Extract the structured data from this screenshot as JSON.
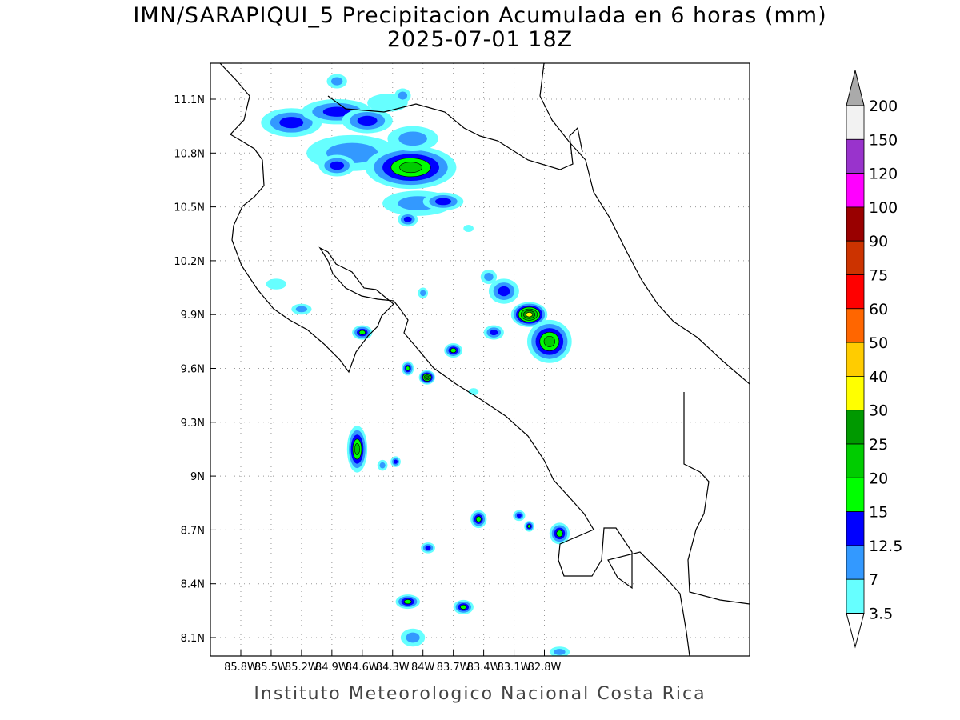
{
  "title": "IMN/SARAPIQUI_5 Precipitacion Acumulada en 6 horas (mm)",
  "subtitle": "2025-07-01 18Z",
  "footer": "Instituto Meteorologico Nacional Costa Rica",
  "map": {
    "lon_range": [
      -86.1,
      -82.55
    ],
    "lat_range": [
      8.0,
      11.3
    ],
    "lon_ticks": [
      {
        "v": -85.8,
        "label": "85.8W"
      },
      {
        "v": -85.5,
        "label": "85.5W"
      },
      {
        "v": -85.2,
        "label": "85.2W"
      },
      {
        "v": -84.9,
        "label": "84.9W"
      },
      {
        "v": -84.6,
        "label": "84.6W"
      },
      {
        "v": -84.3,
        "label": "84.3W"
      },
      {
        "v": -84.0,
        "label": "84W"
      },
      {
        "v": -83.7,
        "label": "83.7W"
      },
      {
        "v": -83.4,
        "label": "83.4W"
      },
      {
        "v": -83.1,
        "label": "83.1W"
      },
      {
        "v": -82.8,
        "label": "82.8W"
      }
    ],
    "lat_ticks": [
      {
        "v": 11.1,
        "label": "11.1N"
      },
      {
        "v": 10.8,
        "label": "10.8N"
      },
      {
        "v": 10.5,
        "label": "10.5N"
      },
      {
        "v": 10.2,
        "label": "10.2N"
      },
      {
        "v": 9.9,
        "label": "9.9N"
      },
      {
        "v": 9.6,
        "label": "9.6N"
      },
      {
        "v": 9.3,
        "label": "9.3N"
      },
      {
        "v": 9.0,
        "label": "9N"
      },
      {
        "v": 8.7,
        "label": "8.7N"
      },
      {
        "v": 8.4,
        "label": "8.4N"
      },
      {
        "v": 8.1,
        "label": "8.1N"
      }
    ],
    "rain_cells": [
      {
        "lon": -85.3,
        "lat": 10.97,
        "rlon": 0.3,
        "rlat": 0.08,
        "level": 2
      },
      {
        "lon": -84.85,
        "lat": 11.03,
        "rlon": 0.35,
        "rlat": 0.07,
        "level": 2
      },
      {
        "lon": -84.55,
        "lat": 10.98,
        "rlon": 0.25,
        "rlat": 0.07,
        "level": 2
      },
      {
        "lon": -84.7,
        "lat": 10.8,
        "rlon": 0.45,
        "rlat": 0.1,
        "level": 1
      },
      {
        "lon": -84.85,
        "lat": 10.73,
        "rlon": 0.18,
        "rlat": 0.06,
        "level": 2
      },
      {
        "lon": -84.12,
        "lat": 10.72,
        "rlon": 0.45,
        "rlat": 0.12,
        "level": 4
      },
      {
        "lon": -84.05,
        "lat": 10.52,
        "rlon": 0.35,
        "rlat": 0.07,
        "level": 1
      },
      {
        "lon": -84.15,
        "lat": 10.43,
        "rlon": 0.1,
        "rlat": 0.04,
        "level": 2
      },
      {
        "lon": -83.8,
        "lat": 10.53,
        "rlon": 0.2,
        "rlat": 0.05,
        "level": 2
      },
      {
        "lon": -84.35,
        "lat": 11.08,
        "rlon": 0.2,
        "rlat": 0.05,
        "level": 0
      },
      {
        "lon": -84.1,
        "lat": 10.88,
        "rlon": 0.25,
        "rlat": 0.07,
        "level": 1
      },
      {
        "lon": -84.2,
        "lat": 11.12,
        "rlon": 0.08,
        "rlat": 0.04,
        "level": 1
      },
      {
        "lon": -84.85,
        "lat": 11.2,
        "rlon": 0.1,
        "rlat": 0.04,
        "level": 1
      },
      {
        "lon": -83.2,
        "lat": 10.03,
        "rlon": 0.15,
        "rlat": 0.07,
        "level": 2
      },
      {
        "lon": -82.95,
        "lat": 9.9,
        "rlon": 0.18,
        "rlat": 0.07,
        "level": 6
      },
      {
        "lon": -83.3,
        "lat": 9.8,
        "rlon": 0.1,
        "rlat": 0.04,
        "level": 2
      },
      {
        "lon": -82.75,
        "lat": 9.75,
        "rlon": 0.22,
        "rlat": 0.12,
        "level": 4
      },
      {
        "lon": -83.35,
        "lat": 10.11,
        "rlon": 0.08,
        "rlat": 0.04,
        "level": 1
      },
      {
        "lon": -84.6,
        "lat": 9.8,
        "rlon": 0.1,
        "rlat": 0.04,
        "level": 3
      },
      {
        "lon": -84.15,
        "lat": 9.6,
        "rlon": 0.06,
        "rlat": 0.04,
        "level": 3
      },
      {
        "lon": -83.96,
        "lat": 9.55,
        "rlon": 0.08,
        "rlat": 0.04,
        "level": 5
      },
      {
        "lon": -83.7,
        "lat": 9.7,
        "rlon": 0.09,
        "rlat": 0.04,
        "level": 3
      },
      {
        "lon": -84.65,
        "lat": 9.15,
        "rlon": 0.1,
        "rlat": 0.13,
        "level": 4
      },
      {
        "lon": -84.4,
        "lat": 9.06,
        "rlon": 0.05,
        "rlat": 0.03,
        "level": 1
      },
      {
        "lon": -84.27,
        "lat": 9.08,
        "rlon": 0.05,
        "rlat": 0.03,
        "level": 2
      },
      {
        "lon": -84.0,
        "lat": 10.02,
        "rlon": 0.05,
        "rlat": 0.03,
        "level": 1
      },
      {
        "lon": -85.2,
        "lat": 9.93,
        "rlon": 0.1,
        "rlat": 0.03,
        "level": 1
      },
      {
        "lon": -85.45,
        "lat": 10.07,
        "rlon": 0.1,
        "rlat": 0.03,
        "level": 0
      },
      {
        "lon": -83.45,
        "lat": 8.76,
        "rlon": 0.08,
        "rlat": 0.05,
        "level": 3
      },
      {
        "lon": -83.05,
        "lat": 8.78,
        "rlon": 0.06,
        "rlat": 0.03,
        "level": 2
      },
      {
        "lon": -82.95,
        "lat": 8.72,
        "rlon": 0.05,
        "rlat": 0.03,
        "level": 3
      },
      {
        "lon": -82.65,
        "lat": 8.68,
        "rlon": 0.1,
        "rlat": 0.06,
        "level": 3
      },
      {
        "lon": -83.95,
        "lat": 8.6,
        "rlon": 0.07,
        "rlat": 0.03,
        "level": 2
      },
      {
        "lon": -84.15,
        "lat": 8.3,
        "rlon": 0.12,
        "rlat": 0.04,
        "level": 3
      },
      {
        "lon": -83.6,
        "lat": 8.27,
        "rlon": 0.1,
        "rlat": 0.04,
        "level": 3
      },
      {
        "lon": -84.1,
        "lat": 8.1,
        "rlon": 0.12,
        "rlat": 0.05,
        "level": 1
      },
      {
        "lon": -82.65,
        "lat": 8.02,
        "rlon": 0.1,
        "rlat": 0.03,
        "level": 1
      },
      {
        "lon": -83.55,
        "lat": 10.38,
        "rlon": 0.05,
        "rlat": 0.02,
        "level": 0
      },
      {
        "lon": -83.5,
        "lat": 9.47,
        "rlon": 0.05,
        "rlat": 0.02,
        "level": 0
      }
    ]
  },
  "colorbar": {
    "levels": [
      "3.5",
      "7",
      "12.5",
      "15",
      "20",
      "25",
      "30",
      "40",
      "50",
      "60",
      "75",
      "90",
      "100",
      "120",
      "150",
      "200"
    ],
    "colors": [
      "#66ffff",
      "#3399ff",
      "#0000ff",
      "#00ff00",
      "#00cc00",
      "#009900",
      "#ffff00",
      "#ffcc00",
      "#ff6600",
      "#ff0000",
      "#cc3300",
      "#990000",
      "#ff00ff",
      "#9933cc",
      "#f2f2f2"
    ],
    "below_color": "#ffffff",
    "above_color": "#aaaaaa"
  }
}
